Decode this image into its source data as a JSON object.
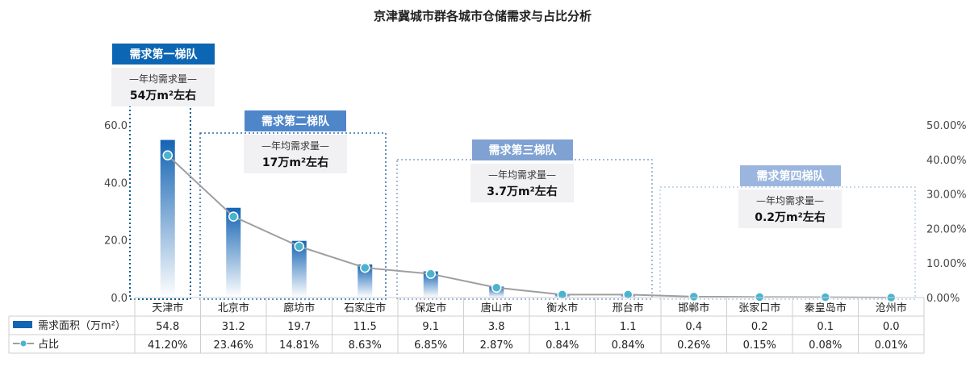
{
  "chart_data": {
    "type": "bar",
    "title": "京津冀城市群各城市仓储需求与占比分析",
    "categories": [
      "天津市",
      "北京市",
      "廊坊市",
      "石家庄市",
      "保定市",
      "唐山市",
      "衡水市",
      "邢台市",
      "邯郸市",
      "张家口市",
      "秦皇岛市",
      "沧州市"
    ],
    "series": [
      {
        "name": "需求面积（万m²）",
        "axis": "left",
        "values": [
          54.8,
          31.2,
          19.7,
          11.5,
          9.1,
          3.8,
          1.1,
          1.1,
          0.4,
          0.2,
          0.1,
          0.0
        ],
        "labels": [
          "54.8",
          "31.2",
          "19.7",
          "11.5",
          "9.1",
          "3.8",
          "1.1",
          "1.1",
          "0.4",
          "0.2",
          "0.1",
          "0.0"
        ]
      },
      {
        "name": "占比",
        "axis": "right",
        "type": "line",
        "values": [
          41.2,
          23.46,
          14.81,
          8.63,
          6.85,
          2.87,
          0.84,
          0.84,
          0.26,
          0.15,
          0.08,
          0.01
        ],
        "labels": [
          "41.20%",
          "23.46%",
          "14.81%",
          "8.63%",
          "6.85%",
          "2.87%",
          "0.84%",
          "0.84%",
          "0.26%",
          "0.15%",
          "0.08%",
          "0.01%"
        ]
      }
    ],
    "y_left": {
      "ylim": [
        0,
        60
      ],
      "ticks": [
        "0.0",
        "20.0",
        "40.0",
        "60.0"
      ]
    },
    "y_right": {
      "ylim": [
        0,
        50
      ],
      "ticks": [
        "0.00%",
        "10.00%",
        "20.00%",
        "30.00%",
        "40.00%",
        "50.00%"
      ]
    },
    "tiers": [
      {
        "title": "需求第一梯队",
        "subtitle": "—年均需求量—",
        "value": "54万m²左右",
        "categories": [
          "天津市"
        ]
      },
      {
        "title": "需求第二梯队",
        "subtitle": "—年均需求量—",
        "value": "17万m²左右",
        "categories": [
          "北京市",
          "廊坊市",
          "石家庄市"
        ]
      },
      {
        "title": "需求第三梯队",
        "subtitle": "—年均需求量—",
        "value": "3.7万m²左右",
        "categories": [
          "保定市",
          "唐山市",
          "衡水市",
          "邢台市"
        ]
      },
      {
        "title": "需求第四梯队",
        "subtitle": "—年均需求量—",
        "value": "0.2万m²左右",
        "categories": [
          "邯郸市",
          "张家口市",
          "秦皇岛市",
          "沧州市"
        ]
      }
    ],
    "colors": {
      "bar_top": "#1464b4",
      "bar_bottom": "#ffffff",
      "line": "#9e9e9e",
      "marker": "#4ab3cf",
      "tier1": "#0d66b3",
      "tier2": "#4f86c9",
      "tier3": "#7fa2d3",
      "tier4": "#9bb6de",
      "tier1_border": "#0f5e8c",
      "tier2_border": "#2f6fa5",
      "tier3_border": "#6a8ebf",
      "tier4_border": "#a9c2dd"
    }
  }
}
